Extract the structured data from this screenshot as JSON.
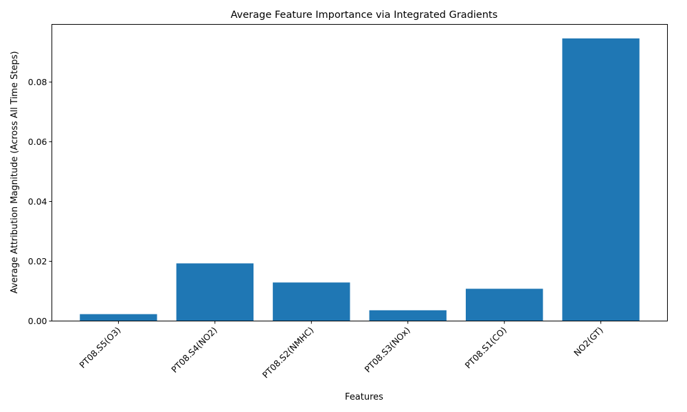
{
  "chart_data": {
    "type": "bar",
    "title": "Average Feature Importance via Integrated Gradients",
    "xlabel": "Features",
    "ylabel": "Average Attribution Magnitude (Across All Time Steps)",
    "categories": [
      "PT08.S5(O3)",
      "PT08.S4(NO2)",
      "PT08.S2(NMHC)",
      "PT08.S3(NOx)",
      "PT08.S1(CO)",
      "NO2(GT)"
    ],
    "values": [
      0.0023,
      0.0193,
      0.0129,
      0.0036,
      0.0108,
      0.0946
    ],
    "ylim": [
      0,
      0.0993
    ],
    "yticks": [
      0.0,
      0.02,
      0.04,
      0.06,
      0.08
    ],
    "ytick_labels": [
      "0.00",
      "0.02",
      "0.04",
      "0.06",
      "0.08"
    ],
    "bar_color": "#1f77b4",
    "grid": false,
    "legend": "none"
  }
}
